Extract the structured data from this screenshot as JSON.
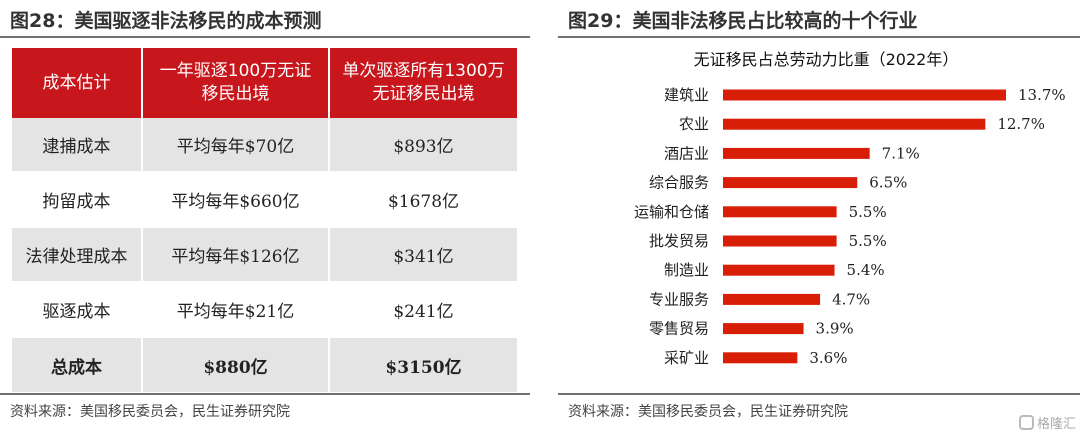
{
  "left": {
    "figure_title": "图28：美国驱逐非法移民的成本预测",
    "table": {
      "headers": [
        "成本估计",
        "一年驱逐100万无证移民出境",
        "单次驱逐所有1300万无证移民出境"
      ],
      "rows": [
        [
          "逮捕成本",
          "平均每年$70亿",
          "$893亿"
        ],
        [
          "拘留成本",
          "平均每年$660亿",
          "$1678亿"
        ],
        [
          "法律处理成本",
          "平均每年$126亿",
          "$341亿"
        ],
        [
          "驱逐成本",
          "平均每年$21亿",
          "$241亿"
        ]
      ],
      "total": [
        "总成本",
        "$880亿",
        "$3150亿"
      ]
    },
    "source": "资料来源：美国移民委员会，民生证券研究院"
  },
  "right": {
    "figure_title": "图29：美国非法移民占比较高的十个行业",
    "source": "资料来源：美国移民委员会，民生证券研究院"
  },
  "chart_data": {
    "type": "bar",
    "orientation": "horizontal",
    "title": "无证移民占总劳动力比重（2022年）",
    "categories": [
      "建筑业",
      "农业",
      "酒店业",
      "综合服务",
      "运输和仓储",
      "批发贸易",
      "制造业",
      "专业服务",
      "零售贸易",
      "采矿业"
    ],
    "values": [
      13.7,
      12.7,
      7.1,
      6.5,
      5.5,
      5.5,
      5.4,
      4.7,
      3.9,
      3.6
    ],
    "value_labels": [
      "13.7%",
      "12.7%",
      "7.1%",
      "6.5%",
      "5.5%",
      "5.5%",
      "5.4%",
      "4.7%",
      "3.9%",
      "3.6%"
    ],
    "xlim": [
      0,
      13.7
    ],
    "grid": false,
    "bar_color": "#d81e06"
  },
  "watermark": "格隆汇"
}
